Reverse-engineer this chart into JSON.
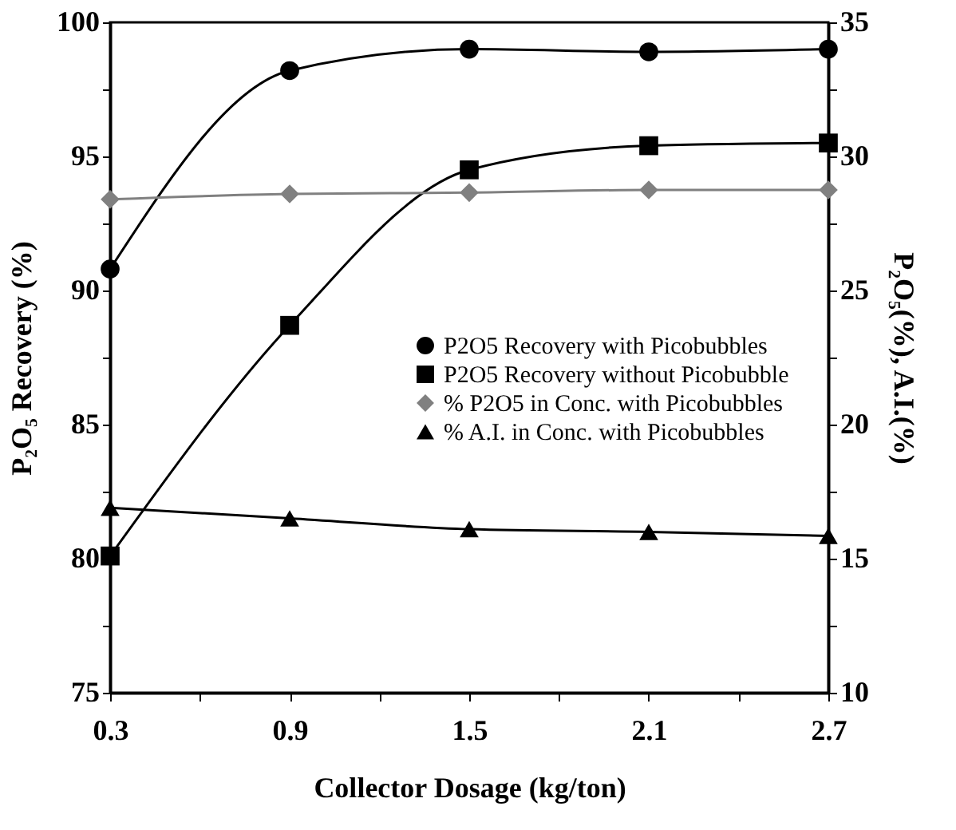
{
  "chart_data": {
    "type": "line",
    "xlabel": "Collector Dosage (kg/ton)",
    "ylabel": "P₂O₅ Recovery (%)",
    "y2label": "P₂O₅(%), A.I.(%)",
    "x": [
      0.3,
      0.9,
      1.5,
      2.1,
      2.7
    ],
    "xlim": [
      0.3,
      2.7
    ],
    "xticks": [
      0.3,
      {
        "value": 0.6,
        "label": null
      },
      0.9,
      {
        "value": 1.2,
        "label": null
      },
      1.5,
      {
        "value": 1.8,
        "label": null
      },
      2.1,
      {
        "value": 2.4,
        "label": null
      },
      2.7
    ],
    "ylim": [
      75,
      100
    ],
    "yticks": [
      75,
      {
        "value": 77.5,
        "label": null
      },
      80,
      {
        "value": 82.5,
        "label": null
      },
      85,
      {
        "value": 87.5,
        "label": null
      },
      90,
      {
        "value": 92.5,
        "label": null
      },
      95,
      {
        "value": 97.5,
        "label": null
      },
      100
    ],
    "y2lim": [
      10,
      35
    ],
    "y2ticks": [
      10,
      {
        "value": 12.5,
        "label": null
      },
      15,
      {
        "value": 17.5,
        "label": null
      },
      20,
      {
        "value": 22.5,
        "label": null
      },
      25,
      {
        "value": 27.5,
        "label": null
      },
      30,
      {
        "value": 32.5,
        "label": null
      },
      35
    ],
    "grid": false,
    "legend": "center",
    "line_style": "solid",
    "series": [
      {
        "name": "P2O5 Recovery with Picobubbles",
        "color": "#000000",
        "marker": "circle",
        "values": [
          90.8,
          98.2,
          99.0,
          98.9,
          99.0
        ]
      },
      {
        "name": "P2O5 Recovery without Picobubble",
        "color": "#000000",
        "marker": "square",
        "values": [
          80.1,
          88.7,
          94.5,
          95.4,
          95.5
        ]
      },
      {
        "name": "% P2O5 in Conc. with Picobubbles",
        "color": "#808080",
        "marker": "diamond",
        "axis": "y2",
        "values": [
          28.4,
          28.6,
          28.65,
          28.75,
          28.75
        ]
      },
      {
        "name": "% A.I. in Conc. with Picobubbles",
        "color": "#000000",
        "marker": "triangle",
        "axis": "y2",
        "values": [
          16.9,
          16.5,
          16.1,
          16.0,
          15.85
        ]
      }
    ]
  }
}
